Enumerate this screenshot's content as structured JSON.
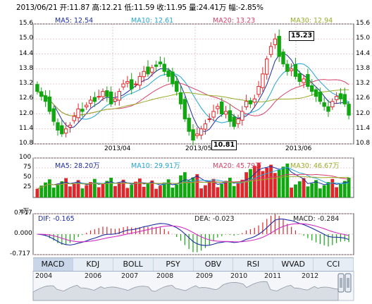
{
  "header": {
    "date": "2013/06/21",
    "open_label": "开:",
    "open": "11.87",
    "high_label": "高:",
    "high": "12.21",
    "low_label": "低:",
    "low": "11.59",
    "close_label": "收:",
    "close": "11.95",
    "volume_label": "量:",
    "volume": "24.41万",
    "change_label": "幅:",
    "change": "-2.85%"
  },
  "price_panel": {
    "ma5": "MA5: 12.54",
    "ma10": "MA10: 12.61",
    "ma20": "MA20: 13.23",
    "ma30": "MA30: 12.94",
    "y_left": [
      "15.6",
      "15.0",
      "14.4",
      "13.8",
      "13.2",
      "12.6",
      "12.0",
      "11.4",
      "10.8"
    ],
    "y_right": [
      "15.6",
      "15.0",
      "14.4",
      "13.8",
      "13.2",
      "12.6",
      "12.0",
      "11.4",
      "10.8"
    ],
    "x_labels": [
      "2013/04",
      "2013/05",
      "2013/06"
    ],
    "callout_high": "15.23",
    "callout_low": "10.81"
  },
  "volume_panel": {
    "ma5": "MA5: 28.20万",
    "ma10": "MA10: 29.91万",
    "ma20": "MA20: 45.79万",
    "ma30": "MA30: 46.67万",
    "y_labels": [
      "100",
      "75",
      "50",
      "25"
    ],
    "unit": "x万"
  },
  "macd_panel": {
    "dif": "DIF: -0.165",
    "dea": "DEA: -0.023",
    "macd": "MACD: -0.284",
    "y_labels": [
      "0.717",
      "0.000",
      "-0.717"
    ]
  },
  "tabs": [
    "MACD",
    "KDJ",
    "BOLL",
    "PSY",
    "OBV",
    "RSI",
    "WVAD",
    "CCI"
  ],
  "active_tab": "MACD",
  "years": [
    "2004",
    "2006",
    "2007",
    "2008",
    "2009",
    "2010",
    "2011",
    "2012"
  ],
  "colors": {
    "up": "#e0262a",
    "down": "#11a711",
    "ma5": "#1c2da3",
    "ma10": "#21a6d4",
    "ma20": "#d6426a",
    "ma30": "#9aac2a",
    "grid": "#c8102e"
  },
  "chart_data": {
    "type": "candlestick",
    "x_range": [
      "2013/03/11",
      "2013/06/21"
    ],
    "ylim": [
      10.8,
      15.6
    ],
    "high_marker": 15.23,
    "low_marker": 10.81,
    "last_bar": {
      "open": 11.87,
      "high": 12.21,
      "low": 11.59,
      "close": 11.95,
      "volume_wan": 24.41
    },
    "volume_ylim": [
      0,
      100
    ],
    "macd_ylim": [
      -0.717,
      0.717
    ]
  }
}
